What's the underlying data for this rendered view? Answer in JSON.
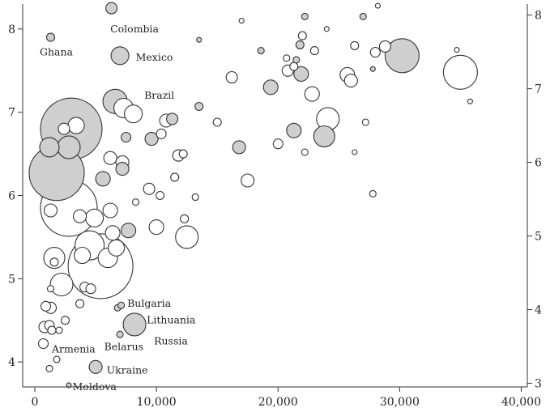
{
  "chart_data": {
    "type": "scatter",
    "title": "",
    "xlabel": "",
    "ylabel": "",
    "y2label": "",
    "xlim": [
      -1000,
      40500
    ],
    "ylim": [
      3.7,
      8.3
    ],
    "y2lim": [
      2.95,
      8.15
    ],
    "grid": false,
    "legend": "none",
    "colors": {
      "highlight": "#cfcfcf",
      "default": "#ffffff",
      "stroke": "#333333"
    },
    "x_ticks": [
      {
        "value": 0,
        "label": "0"
      },
      {
        "value": 10000,
        "label": "10,000"
      },
      {
        "value": 20000,
        "label": "20,000"
      },
      {
        "value": 30000,
        "label": "30,000"
      },
      {
        "value": 40000,
        "label": "40,000"
      }
    ],
    "y_ticks": [
      {
        "value": 4,
        "label": "4"
      },
      {
        "value": 5,
        "label": "5"
      },
      {
        "value": 6,
        "label": "6"
      },
      {
        "value": 7,
        "label": "7"
      },
      {
        "value": 8,
        "label": "8"
      }
    ],
    "y2_ticks": [
      {
        "value": 3,
        "label": "3"
      },
      {
        "value": 4,
        "label": "4"
      },
      {
        "value": 5,
        "label": "5"
      },
      {
        "value": 6,
        "label": "6"
      },
      {
        "value": 7,
        "label": "7"
      },
      {
        "value": 8,
        "label": "8"
      }
    ],
    "annotations": [
      {
        "text": "Colombia",
        "x": 6200,
        "y": 8.0
      },
      {
        "text": "Ghana",
        "x": 400,
        "y": 7.72
      },
      {
        "text": "Mexico",
        "x": 8300,
        "y": 7.66
      },
      {
        "text": "Brazil",
        "x": 9000,
        "y": 7.2
      },
      {
        "text": "Bulgaria",
        "x": 7600,
        "y": 4.7
      },
      {
        "text": "Lithuania",
        "x": 9200,
        "y": 4.5
      },
      {
        "text": "Russia",
        "x": 9800,
        "y": 4.25
      },
      {
        "text": "Armenia",
        "x": 1400,
        "y": 4.15
      },
      {
        "text": "Belarus",
        "x": 5700,
        "y": 4.18
      },
      {
        "text": "Ukraine",
        "x": 5900,
        "y": 3.9
      },
      {
        "text": "Moldova",
        "x": 3100,
        "y": 3.7
      }
    ],
    "points": [
      {
        "x": 6300,
        "y": 8.25,
        "r": 7,
        "highlight": true
      },
      {
        "x": 1300,
        "y": 7.9,
        "r": 5,
        "highlight": true
      },
      {
        "x": 7000,
        "y": 7.68,
        "r": 11,
        "highlight": true
      },
      {
        "x": 6600,
        "y": 7.13,
        "r": 15,
        "highlight": true
      },
      {
        "x": 7300,
        "y": 7.05,
        "r": 12,
        "highlight": false
      },
      {
        "x": 8100,
        "y": 6.98,
        "r": 11,
        "highlight": false
      },
      {
        "x": 3000,
        "y": 6.8,
        "r": 38,
        "highlight": true
      },
      {
        "x": 1800,
        "y": 6.27,
        "r": 34,
        "highlight": true
      },
      {
        "x": 2800,
        "y": 5.85,
        "r": 35,
        "highlight": false
      },
      {
        "x": 5400,
        "y": 5.15,
        "r": 40,
        "highlight": false
      },
      {
        "x": 1200,
        "y": 6.58,
        "r": 12,
        "highlight": true
      },
      {
        "x": 2800,
        "y": 6.58,
        "r": 14,
        "highlight": true
      },
      {
        "x": 3400,
        "y": 6.84,
        "r": 10,
        "highlight": false
      },
      {
        "x": 2400,
        "y": 6.8,
        "r": 7,
        "highlight": false
      },
      {
        "x": 5600,
        "y": 6.2,
        "r": 9,
        "highlight": true
      },
      {
        "x": 6200,
        "y": 6.45,
        "r": 8,
        "highlight": false
      },
      {
        "x": 7200,
        "y": 6.4,
        "r": 8,
        "highlight": false
      },
      {
        "x": 7200,
        "y": 6.32,
        "r": 8,
        "highlight": true
      },
      {
        "x": 7500,
        "y": 6.7,
        "r": 6,
        "highlight": true
      },
      {
        "x": 9600,
        "y": 6.68,
        "r": 8,
        "highlight": true
      },
      {
        "x": 10400,
        "y": 6.74,
        "r": 6,
        "highlight": false
      },
      {
        "x": 10800,
        "y": 6.9,
        "r": 8,
        "highlight": false
      },
      {
        "x": 11300,
        "y": 6.92,
        "r": 7,
        "highlight": true
      },
      {
        "x": 13500,
        "y": 7.07,
        "r": 5,
        "highlight": true
      },
      {
        "x": 15000,
        "y": 6.88,
        "r": 5,
        "highlight": false
      },
      {
        "x": 16200,
        "y": 7.42,
        "r": 7,
        "highlight": false
      },
      {
        "x": 16800,
        "y": 6.58,
        "r": 8,
        "highlight": true
      },
      {
        "x": 17500,
        "y": 6.18,
        "r": 8,
        "highlight": false
      },
      {
        "x": 17000,
        "y": 8.1,
        "r": 3,
        "highlight": false
      },
      {
        "x": 13500,
        "y": 7.87,
        "r": 3,
        "highlight": true
      },
      {
        "x": 18600,
        "y": 7.74,
        "r": 4,
        "highlight": true
      },
      {
        "x": 19400,
        "y": 7.3,
        "r": 9,
        "highlight": true
      },
      {
        "x": 20000,
        "y": 6.62,
        "r": 6,
        "highlight": false
      },
      {
        "x": 20700,
        "y": 7.65,
        "r": 4,
        "highlight": false
      },
      {
        "x": 20800,
        "y": 7.5,
        "r": 7,
        "highlight": false
      },
      {
        "x": 21300,
        "y": 7.55,
        "r": 5,
        "highlight": false
      },
      {
        "x": 21500,
        "y": 7.63,
        "r": 4,
        "highlight": true
      },
      {
        "x": 21800,
        "y": 7.81,
        "r": 5,
        "highlight": true
      },
      {
        "x": 22000,
        "y": 7.92,
        "r": 5,
        "highlight": false
      },
      {
        "x": 21900,
        "y": 7.46,
        "r": 9,
        "highlight": true
      },
      {
        "x": 21300,
        "y": 6.78,
        "r": 9,
        "highlight": true
      },
      {
        "x": 22200,
        "y": 6.52,
        "r": 4,
        "highlight": false
      },
      {
        "x": 22800,
        "y": 7.22,
        "r": 9,
        "highlight": false
      },
      {
        "x": 22200,
        "y": 8.15,
        "r": 4,
        "highlight": true
      },
      {
        "x": 23000,
        "y": 7.74,
        "r": 5,
        "highlight": false
      },
      {
        "x": 23800,
        "y": 6.71,
        "r": 13,
        "highlight": true
      },
      {
        "x": 24100,
        "y": 6.92,
        "r": 14,
        "highlight": false
      },
      {
        "x": 24000,
        "y": 8.0,
        "r": 3,
        "highlight": false
      },
      {
        "x": 25700,
        "y": 7.45,
        "r": 9,
        "highlight": false
      },
      {
        "x": 26000,
        "y": 7.38,
        "r": 8,
        "highlight": false
      },
      {
        "x": 26300,
        "y": 7.8,
        "r": 5,
        "highlight": false
      },
      {
        "x": 26300,
        "y": 6.52,
        "r": 3,
        "highlight": false
      },
      {
        "x": 27000,
        "y": 8.15,
        "r": 4,
        "highlight": true
      },
      {
        "x": 27200,
        "y": 6.88,
        "r": 4,
        "highlight": false
      },
      {
        "x": 27800,
        "y": 7.52,
        "r": 3,
        "highlight": true
      },
      {
        "x": 27800,
        "y": 6.02,
        "r": 4,
        "highlight": false
      },
      {
        "x": 28000,
        "y": 7.72,
        "r": 6,
        "highlight": false
      },
      {
        "x": 28200,
        "y": 8.28,
        "r": 3,
        "highlight": false
      },
      {
        "x": 28800,
        "y": 7.79,
        "r": 7,
        "highlight": false
      },
      {
        "x": 30200,
        "y": 7.68,
        "r": 21,
        "highlight": true
      },
      {
        "x": 35000,
        "y": 7.48,
        "r": 21,
        "highlight": false
      },
      {
        "x": 34700,
        "y": 7.75,
        "r": 3,
        "highlight": false
      },
      {
        "x": 35800,
        "y": 7.13,
        "r": 3,
        "highlight": false
      },
      {
        "x": 9400,
        "y": 6.08,
        "r": 7,
        "highlight": false
      },
      {
        "x": 10300,
        "y": 6.0,
        "r": 5,
        "highlight": false
      },
      {
        "x": 10000,
        "y": 5.62,
        "r": 9,
        "highlight": false
      },
      {
        "x": 11800,
        "y": 6.48,
        "r": 7,
        "highlight": false
      },
      {
        "x": 12200,
        "y": 6.5,
        "r": 5,
        "highlight": false
      },
      {
        "x": 11500,
        "y": 6.22,
        "r": 5,
        "highlight": false
      },
      {
        "x": 12500,
        "y": 5.5,
        "r": 14,
        "highlight": false
      },
      {
        "x": 12300,
        "y": 5.72,
        "r": 5,
        "highlight": false
      },
      {
        "x": 13200,
        "y": 5.98,
        "r": 4,
        "highlight": false
      },
      {
        "x": 7700,
        "y": 5.58,
        "r": 9,
        "highlight": true
      },
      {
        "x": 8300,
        "y": 5.92,
        "r": 4,
        "highlight": false
      },
      {
        "x": 6200,
        "y": 5.82,
        "r": 9,
        "highlight": false
      },
      {
        "x": 6400,
        "y": 5.55,
        "r": 9,
        "highlight": false
      },
      {
        "x": 4500,
        "y": 5.4,
        "r": 18,
        "highlight": false
      },
      {
        "x": 6700,
        "y": 5.37,
        "r": 10,
        "highlight": false
      },
      {
        "x": 6000,
        "y": 5.25,
        "r": 12,
        "highlight": false
      },
      {
        "x": 1600,
        "y": 5.25,
        "r": 13,
        "highlight": false
      },
      {
        "x": 2200,
        "y": 4.93,
        "r": 14,
        "highlight": false
      },
      {
        "x": 3900,
        "y": 5.28,
        "r": 10,
        "highlight": false
      },
      {
        "x": 4900,
        "y": 5.73,
        "r": 11,
        "highlight": false
      },
      {
        "x": 3700,
        "y": 5.75,
        "r": 8,
        "highlight": false
      },
      {
        "x": 1300,
        "y": 5.82,
        "r": 8,
        "highlight": false
      },
      {
        "x": 1600,
        "y": 5.2,
        "r": 5,
        "highlight": false
      },
      {
        "x": 1300,
        "y": 4.88,
        "r": 4,
        "highlight": false
      },
      {
        "x": 900,
        "y": 4.67,
        "r": 6,
        "highlight": false
      },
      {
        "x": 1300,
        "y": 4.65,
        "r": 7,
        "highlight": false
      },
      {
        "x": 800,
        "y": 4.42,
        "r": 7,
        "highlight": false
      },
      {
        "x": 1200,
        "y": 4.44,
        "r": 6,
        "highlight": false
      },
      {
        "x": 1400,
        "y": 4.38,
        "r": 5,
        "highlight": false
      },
      {
        "x": 700,
        "y": 4.22,
        "r": 6,
        "highlight": false
      },
      {
        "x": 2500,
        "y": 4.5,
        "r": 5,
        "highlight": false
      },
      {
        "x": 3700,
        "y": 4.7,
        "r": 5,
        "highlight": false
      },
      {
        "x": 4100,
        "y": 4.9,
        "r": 6,
        "highlight": false
      },
      {
        "x": 4600,
        "y": 4.88,
        "r": 6,
        "highlight": false
      },
      {
        "x": 6800,
        "y": 4.65,
        "r": 4,
        "highlight": true
      },
      {
        "x": 7100,
        "y": 4.68,
        "r": 4,
        "highlight": true
      },
      {
        "x": 8200,
        "y": 4.45,
        "r": 14,
        "highlight": true
      },
      {
        "x": 7000,
        "y": 4.33,
        "r": 4,
        "highlight": true
      },
      {
        "x": 2000,
        "y": 4.38,
        "r": 4,
        "highlight": false
      },
      {
        "x": 1800,
        "y": 4.03,
        "r": 4,
        "highlight": false
      },
      {
        "x": 1200,
        "y": 3.92,
        "r": 4,
        "highlight": false
      },
      {
        "x": 5000,
        "y": 3.94,
        "r": 8,
        "highlight": true
      },
      {
        "x": 2800,
        "y": 3.72,
        "r": 3,
        "highlight": true
      }
    ]
  }
}
